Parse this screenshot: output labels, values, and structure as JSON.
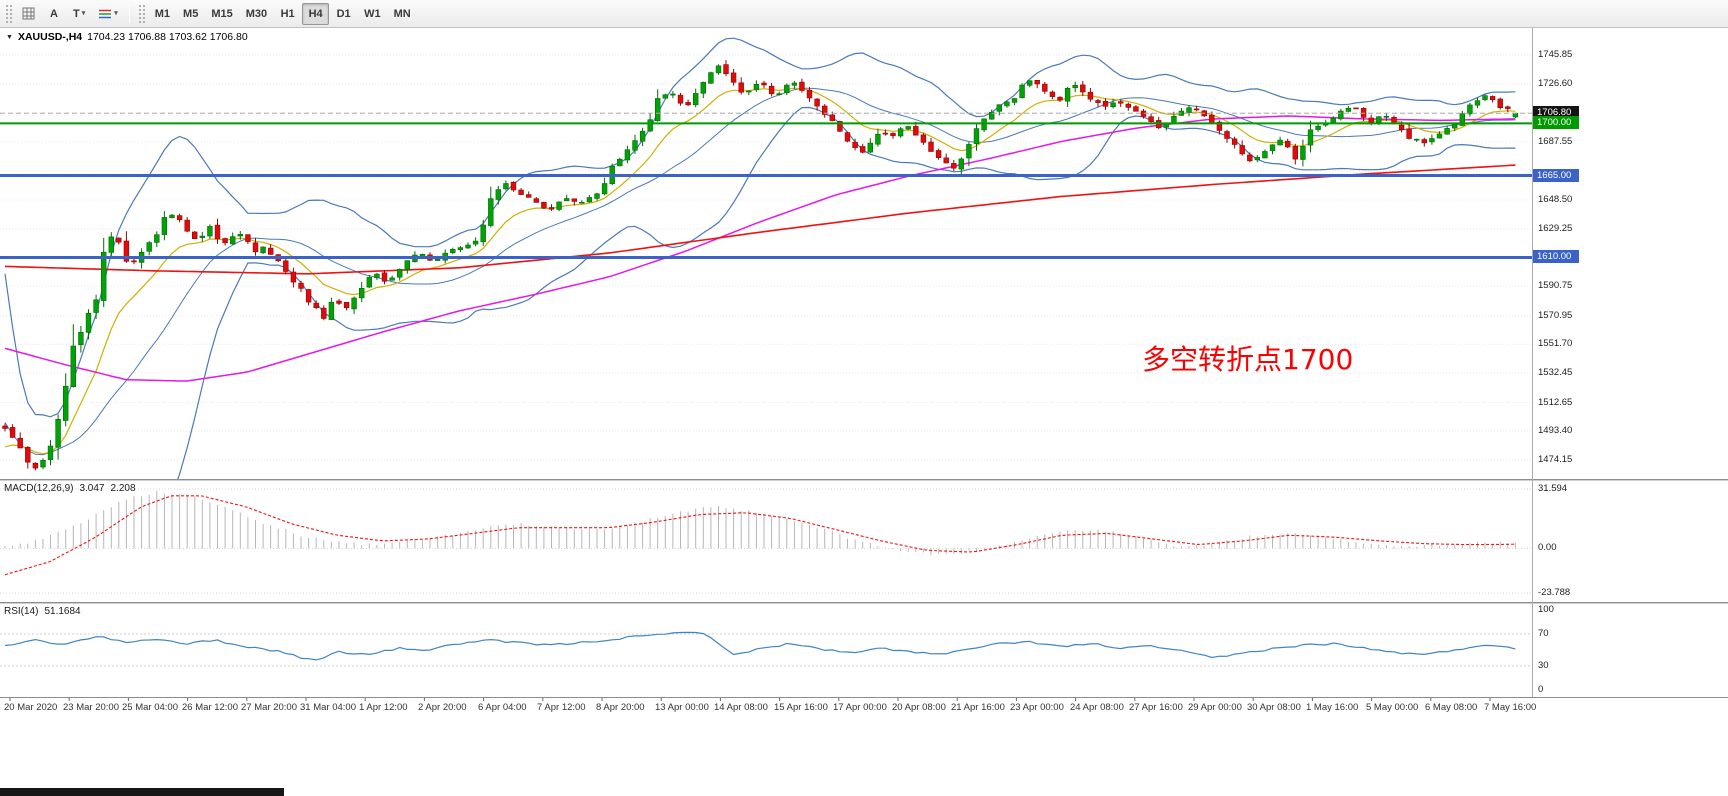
{
  "toolbar": {
    "text_tool_label": "A",
    "type_tool_label": "T",
    "timeframes": [
      "M1",
      "M5",
      "M15",
      "M30",
      "H1",
      "H4",
      "D1",
      "W1",
      "MN"
    ],
    "active_timeframe": "H4"
  },
  "chart": {
    "symbol_period": "XAUUSD-,H4",
    "ohlc": "1704.23 1706.88 1703.62 1706.80",
    "annotation": "多空转折点1700",
    "price_axis_labels": [
      "1745.85",
      "1726.60",
      "1687.55",
      "1648.50",
      "1629.25",
      "1590.75",
      "1570.95",
      "1551.70",
      "1532.45",
      "1512.65",
      "1493.40",
      "1474.15"
    ],
    "badges": [
      {
        "label": "1706.80",
        "price": 1706.8,
        "bg": "#141414"
      },
      {
        "label": "1700.00",
        "price": 1700.0,
        "bg": "#009b00"
      },
      {
        "label": "1665.00",
        "price": 1665.0,
        "bg": "#3a62c9"
      },
      {
        "label": "1610.00",
        "price": 1610.0,
        "bg": "#3a62c9"
      }
    ],
    "hlines": [
      {
        "price": 1706.8,
        "color": "#ababab",
        "width": 1,
        "dash": true
      },
      {
        "price": 1700.0,
        "color": "#009b00",
        "width": 2,
        "dash": false
      },
      {
        "price": 1665.0,
        "color": "#3a62c9",
        "width": 3,
        "dash": false
      },
      {
        "price": 1610.0,
        "color": "#3a62c9",
        "width": 3,
        "dash": false
      }
    ]
  },
  "chart_data": {
    "type": "candlestick",
    "symbol": "XAUUSD-",
    "timeframe": "H4",
    "current_bar": [
      1704.23,
      1706.88,
      1703.62,
      1706.8
    ],
    "price_range": [
      1462,
      1764
    ],
    "grid_prices": [
      1745.85,
      1726.6,
      1707.1,
      1687.55,
      1668.2,
      1648.5,
      1629.25,
      1610.0,
      1590.75,
      1570.95,
      1551.7,
      1532.45,
      1512.65,
      1493.4,
      1474.15
    ],
    "pre_history": [
      1672,
      1650,
      1610,
      1560,
      1520,
      1480,
      1451,
      1460,
      1475,
      1500,
      1486,
      1470,
      1455,
      1470,
      1485,
      1500,
      1490,
      1478,
      1470,
      1480
    ],
    "price_path": [
      [
        0,
        1496
      ],
      [
        0.01,
        1481
      ],
      [
        0.02,
        1468
      ],
      [
        0.028,
        1476
      ],
      [
        0.035,
        1498
      ],
      [
        0.04,
        1528
      ],
      [
        0.046,
        1552
      ],
      [
        0.053,
        1566
      ],
      [
        0.06,
        1580
      ],
      [
        0.066,
        1612
      ],
      [
        0.071,
        1628
      ],
      [
        0.076,
        1618
      ],
      [
        0.082,
        1600
      ],
      [
        0.089,
        1613
      ],
      [
        0.098,
        1622
      ],
      [
        0.106,
        1636
      ],
      [
        0.113,
        1640
      ],
      [
        0.12,
        1629
      ],
      [
        0.128,
        1621
      ],
      [
        0.136,
        1631
      ],
      [
        0.144,
        1618
      ],
      [
        0.151,
        1625
      ],
      [
        0.158,
        1627
      ],
      [
        0.165,
        1612
      ],
      [
        0.172,
        1618
      ],
      [
        0.18,
        1608
      ],
      [
        0.188,
        1598
      ],
      [
        0.196,
        1588
      ],
      [
        0.204,
        1578
      ],
      [
        0.211,
        1570
      ],
      [
        0.218,
        1582
      ],
      [
        0.226,
        1575
      ],
      [
        0.236,
        1590
      ],
      [
        0.245,
        1600
      ],
      [
        0.254,
        1592
      ],
      [
        0.264,
        1608
      ],
      [
        0.275,
        1613
      ],
      [
        0.284,
        1607
      ],
      [
        0.294,
        1616
      ],
      [
        0.305,
        1618
      ],
      [
        0.314,
        1623
      ],
      [
        0.321,
        1646
      ],
      [
        0.33,
        1661
      ],
      [
        0.34,
        1654
      ],
      [
        0.353,
        1647
      ],
      [
        0.361,
        1641
      ],
      [
        0.37,
        1650
      ],
      [
        0.381,
        1646
      ],
      [
        0.393,
        1653
      ],
      [
        0.402,
        1670
      ],
      [
        0.412,
        1684
      ],
      [
        0.422,
        1694
      ],
      [
        0.432,
        1714
      ],
      [
        0.441,
        1722
      ],
      [
        0.45,
        1709
      ],
      [
        0.46,
        1727
      ],
      [
        0.471,
        1739
      ],
      [
        0.48,
        1729
      ],
      [
        0.489,
        1719
      ],
      [
        0.5,
        1728
      ],
      [
        0.511,
        1717
      ],
      [
        0.519,
        1729
      ],
      [
        0.529,
        1722
      ],
      [
        0.539,
        1710
      ],
      [
        0.55,
        1699
      ],
      [
        0.559,
        1687
      ],
      [
        0.568,
        1681
      ],
      [
        0.578,
        1694
      ],
      [
        0.589,
        1691
      ],
      [
        0.597,
        1700
      ],
      [
        0.607,
        1687
      ],
      [
        0.617,
        1677
      ],
      [
        0.628,
        1669
      ],
      [
        0.637,
        1684
      ],
      [
        0.647,
        1701
      ],
      [
        0.657,
        1711
      ],
      [
        0.668,
        1717
      ],
      [
        0.677,
        1729
      ],
      [
        0.687,
        1724
      ],
      [
        0.697,
        1714
      ],
      [
        0.707,
        1727
      ],
      [
        0.716,
        1719
      ],
      [
        0.726,
        1711
      ],
      [
        0.736,
        1716
      ],
      [
        0.746,
        1710
      ],
      [
        0.756,
        1704
      ],
      [
        0.765,
        1697
      ],
      [
        0.775,
        1707
      ],
      [
        0.785,
        1712
      ],
      [
        0.795,
        1704
      ],
      [
        0.805,
        1694
      ],
      [
        0.815,
        1684
      ],
      [
        0.825,
        1674
      ],
      [
        0.834,
        1681
      ],
      [
        0.844,
        1690
      ],
      [
        0.854,
        1677
      ],
      [
        0.864,
        1695
      ],
      [
        0.874,
        1701
      ],
      [
        0.884,
        1707
      ],
      [
        0.893,
        1711
      ],
      [
        0.903,
        1701
      ],
      [
        0.912,
        1706
      ],
      [
        0.922,
        1697
      ],
      [
        0.931,
        1689
      ],
      [
        0.942,
        1687
      ],
      [
        0.951,
        1695
      ],
      [
        0.961,
        1701
      ],
      [
        0.971,
        1713
      ],
      [
        0.981,
        1719
      ],
      [
        0.99,
        1711
      ],
      [
        1,
        1706.8
      ]
    ],
    "ma_magenta": [
      [
        0,
        1549
      ],
      [
        0.04,
        1538
      ],
      [
        0.08,
        1528
      ],
      [
        0.12,
        1527
      ],
      [
        0.16,
        1533
      ],
      [
        0.2,
        1545
      ],
      [
        0.25,
        1560
      ],
      [
        0.3,
        1574
      ],
      [
        0.35,
        1585
      ],
      [
        0.4,
        1597
      ],
      [
        0.45,
        1614
      ],
      [
        0.5,
        1634
      ],
      [
        0.55,
        1652
      ],
      [
        0.6,
        1665
      ],
      [
        0.65,
        1676
      ],
      [
        0.7,
        1688
      ],
      [
        0.75,
        1697
      ],
      [
        0.8,
        1703
      ],
      [
        0.85,
        1705
      ],
      [
        0.9,
        1703
      ],
      [
        0.95,
        1702
      ],
      [
        1,
        1703
      ]
    ],
    "ma_red": [
      [
        0,
        1604
      ],
      [
        0.1,
        1601
      ],
      [
        0.2,
        1599
      ],
      [
        0.3,
        1603
      ],
      [
        0.4,
        1613
      ],
      [
        0.5,
        1627
      ],
      [
        0.6,
        1640
      ],
      [
        0.7,
        1651
      ],
      [
        0.8,
        1659
      ],
      [
        0.9,
        1666
      ],
      [
        1,
        1672
      ]
    ],
    "colors": {
      "up": "#00a305",
      "up_edge": "#056b05",
      "down": "#e00c0c",
      "down_edge": "#8f0606",
      "bollinger": "#4a7ab8",
      "ma_fast": "#d0b000",
      "ma_slow": "#e816e8",
      "ma_trend": "#ef1212",
      "macd_hist": "#b6b6b6",
      "macd_signal": "#f01414",
      "rsi": "#3f85c6",
      "hline_green": "#009b00",
      "hline_blue": "#3a62c9",
      "annotation": "#fb0000"
    },
    "macd": {
      "label": "MACD(12,26,9)",
      "value_main": "3.047",
      "value_signal": "2.208",
      "scale_labels": [
        "31.594",
        "0.00",
        "-23.788"
      ],
      "hist": [
        [
          0,
          1
        ],
        [
          0.02,
          4
        ],
        [
          0.04,
          10
        ],
        [
          0.06,
          18
        ],
        [
          0.08,
          26
        ],
        [
          0.1,
          30
        ],
        [
          0.12,
          29
        ],
        [
          0.14,
          24
        ],
        [
          0.16,
          17
        ],
        [
          0.18,
          11
        ],
        [
          0.2,
          6
        ],
        [
          0.22,
          3
        ],
        [
          0.24,
          2
        ],
        [
          0.26,
          3
        ],
        [
          0.28,
          5
        ],
        [
          0.3,
          8
        ],
        [
          0.32,
          11
        ],
        [
          0.34,
          13
        ],
        [
          0.36,
          12
        ],
        [
          0.38,
          10
        ],
        [
          0.4,
          11
        ],
        [
          0.42,
          14
        ],
        [
          0.44,
          18
        ],
        [
          0.46,
          21
        ],
        [
          0.475,
          22
        ],
        [
          0.49,
          20
        ],
        [
          0.51,
          17
        ],
        [
          0.53,
          13
        ],
        [
          0.55,
          8
        ],
        [
          0.57,
          3
        ],
        [
          0.59,
          -1
        ],
        [
          0.61,
          -3
        ],
        [
          0.63,
          -3
        ],
        [
          0.65,
          0
        ],
        [
          0.67,
          4
        ],
        [
          0.69,
          8
        ],
        [
          0.71,
          10
        ],
        [
          0.73,
          9
        ],
        [
          0.75,
          6
        ],
        [
          0.77,
          2
        ],
        [
          0.79,
          1
        ],
        [
          0.81,
          4
        ],
        [
          0.83,
          7
        ],
        [
          0.85,
          8
        ],
        [
          0.87,
          6
        ],
        [
          0.89,
          4
        ],
        [
          0.91,
          2
        ],
        [
          0.93,
          1
        ],
        [
          0.95,
          2
        ],
        [
          0.97,
          3
        ],
        [
          1,
          3
        ]
      ],
      "signal": [
        [
          0,
          -14
        ],
        [
          0.03,
          -7
        ],
        [
          0.06,
          6
        ],
        [
          0.09,
          22
        ],
        [
          0.11,
          28
        ],
        [
          0.13,
          28
        ],
        [
          0.16,
          22
        ],
        [
          0.19,
          13
        ],
        [
          0.22,
          7
        ],
        [
          0.25,
          4
        ],
        [
          0.28,
          5
        ],
        [
          0.31,
          8
        ],
        [
          0.34,
          11
        ],
        [
          0.37,
          11
        ],
        [
          0.4,
          11
        ],
        [
          0.43,
          14
        ],
        [
          0.46,
          18
        ],
        [
          0.49,
          19
        ],
        [
          0.52,
          16
        ],
        [
          0.55,
          10
        ],
        [
          0.58,
          4
        ],
        [
          0.61,
          -1
        ],
        [
          0.64,
          -2
        ],
        [
          0.67,
          2
        ],
        [
          0.7,
          7
        ],
        [
          0.73,
          8
        ],
        [
          0.76,
          5
        ],
        [
          0.79,
          2
        ],
        [
          0.82,
          4
        ],
        [
          0.85,
          7
        ],
        [
          0.88,
          6
        ],
        [
          0.91,
          4
        ],
        [
          0.94,
          2.5
        ],
        [
          0.97,
          2
        ],
        [
          1,
          2.2
        ]
      ]
    },
    "rsi": {
      "label": "RSI(14)",
      "value": "51.1684",
      "scale_labels": [
        "100",
        "70",
        "30",
        "0"
      ],
      "grid_levels": [
        70,
        30
      ],
      "line": [
        [
          0,
          55
        ],
        [
          0.02,
          62
        ],
        [
          0.04,
          57
        ],
        [
          0.06,
          67
        ],
        [
          0.08,
          60
        ],
        [
          0.1,
          64
        ],
        [
          0.12,
          58
        ],
        [
          0.14,
          62
        ],
        [
          0.16,
          54
        ],
        [
          0.18,
          49
        ],
        [
          0.205,
          36
        ],
        [
          0.22,
          48
        ],
        [
          0.24,
          44
        ],
        [
          0.26,
          52
        ],
        [
          0.28,
          50
        ],
        [
          0.3,
          58
        ],
        [
          0.32,
          62
        ],
        [
          0.34,
          59
        ],
        [
          0.36,
          56
        ],
        [
          0.38,
          59
        ],
        [
          0.4,
          63
        ],
        [
          0.42,
          67
        ],
        [
          0.44,
          70
        ],
        [
          0.455,
          74
        ],
        [
          0.468,
          66
        ],
        [
          0.482,
          43
        ],
        [
          0.5,
          52
        ],
        [
          0.52,
          58
        ],
        [
          0.54,
          51
        ],
        [
          0.56,
          46
        ],
        [
          0.58,
          52
        ],
        [
          0.6,
          48
        ],
        [
          0.62,
          44
        ],
        [
          0.64,
          52
        ],
        [
          0.66,
          58
        ],
        [
          0.68,
          60
        ],
        [
          0.7,
          54
        ],
        [
          0.72,
          58
        ],
        [
          0.74,
          52
        ],
        [
          0.76,
          55
        ],
        [
          0.78,
          48
        ],
        [
          0.8,
          40
        ],
        [
          0.82,
          46
        ],
        [
          0.84,
          52
        ],
        [
          0.86,
          56
        ],
        [
          0.88,
          58
        ],
        [
          0.9,
          52
        ],
        [
          0.92,
          47
        ],
        [
          0.94,
          44
        ],
        [
          0.96,
          50
        ],
        [
          0.98,
          57
        ],
        [
          1,
          51.2
        ]
      ]
    },
    "time_labels": [
      "20 Mar 2020",
      "23 Mar 20:00",
      "25 Mar 04:00",
      "26 Mar 12:00",
      "27 Mar 20:00",
      "31 Mar 04:00",
      "1 Apr 12:00",
      "2 Apr 20:00",
      "6 Apr 04:00",
      "7 Apr 12:00",
      "8 Apr 20:00",
      "13 Apr 00:00",
      "14 Apr 08:00",
      "15 Apr 16:00",
      "17 Apr 00:00",
      "20 Apr 08:00",
      "21 Apr 16:00",
      "23 Apr 00:00",
      "24 Apr 08:00",
      "27 Apr 16:00",
      "29 Apr 00:00",
      "30 Apr 08:00",
      "1 May 16:00",
      "5 May 00:00",
      "6 May 08:00",
      "7 May 16:00"
    ]
  }
}
